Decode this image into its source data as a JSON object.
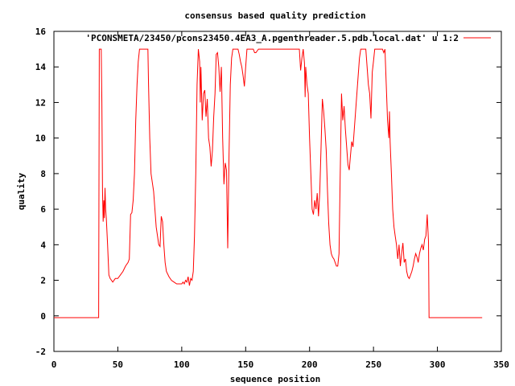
{
  "chart_data": {
    "type": "line",
    "title": "consensus based quality prediction",
    "xlabel": "sequence position",
    "ylabel": "quality",
    "xlim": [
      0,
      350
    ],
    "ylim": [
      -2,
      16
    ],
    "xticks": [
      0,
      50,
      100,
      150,
      200,
      250,
      300,
      350
    ],
    "yticks": [
      -2,
      0,
      2,
      4,
      6,
      8,
      10,
      12,
      14,
      16
    ],
    "grid": false,
    "legend_position": "top-right",
    "series": [
      {
        "name": "'PCONSMETA/23450/pcons23450.4EA3_A.pgenthreader.5.pdb.local.dat' u 1:2",
        "color": "#ff0000",
        "points": [
          [
            0,
            -0.1
          ],
          [
            35,
            -0.1
          ],
          [
            35.5,
            15
          ],
          [
            36,
            15
          ],
          [
            37,
            15
          ],
          [
            37.5,
            12
          ],
          [
            38,
            7
          ],
          [
            38.5,
            5.3
          ],
          [
            39,
            6.5
          ],
          [
            39.5,
            5.5
          ],
          [
            40,
            7.2
          ],
          [
            40.5,
            6
          ],
          [
            41,
            5.5
          ],
          [
            42,
            4
          ],
          [
            43,
            2.3
          ],
          [
            44,
            2.1
          ],
          [
            46,
            1.9
          ],
          [
            48,
            2.1
          ],
          [
            50,
            2.1
          ],
          [
            52,
            2.3
          ],
          [
            54,
            2.5
          ],
          [
            56,
            2.8
          ],
          [
            58,
            3
          ],
          [
            59,
            3.2
          ],
          [
            60,
            5.7
          ],
          [
            61,
            5.8
          ],
          [
            62,
            6.5
          ],
          [
            63,
            8
          ],
          [
            64,
            11
          ],
          [
            65,
            13
          ],
          [
            66,
            14.3
          ],
          [
            67,
            15
          ],
          [
            70,
            15
          ],
          [
            72,
            15
          ],
          [
            73.5,
            15
          ],
          [
            74,
            13
          ],
          [
            75,
            10
          ],
          [
            76,
            8
          ],
          [
            77,
            7.5
          ],
          [
            78,
            7
          ],
          [
            79,
            6
          ],
          [
            80,
            5
          ],
          [
            81,
            4.5
          ],
          [
            82,
            4
          ],
          [
            83,
            3.9
          ],
          [
            84,
            5.6
          ],
          [
            85,
            5.3
          ],
          [
            86,
            4
          ],
          [
            87,
            3
          ],
          [
            88,
            2.5
          ],
          [
            90,
            2.2
          ],
          [
            92,
            2
          ],
          [
            94,
            1.9
          ],
          [
            96,
            1.8
          ],
          [
            98,
            1.8
          ],
          [
            100,
            1.8
          ],
          [
            101,
            1.9
          ],
          [
            102,
            1.8
          ],
          [
            103,
            2
          ],
          [
            104,
            1.9
          ],
          [
            105,
            2.2
          ],
          [
            106,
            1.7
          ],
          [
            107,
            2.1
          ],
          [
            108,
            2
          ],
          [
            109,
            2.5
          ],
          [
            110,
            4.5
          ],
          [
            111,
            8
          ],
          [
            112,
            13
          ],
          [
            113,
            15
          ],
          [
            114,
            14.3
          ],
          [
            114.5,
            12
          ],
          [
            115,
            14
          ],
          [
            116,
            11
          ],
          [
            117,
            12.5
          ],
          [
            118,
            12.7
          ],
          [
            119,
            11.2
          ],
          [
            120,
            12.2
          ],
          [
            121,
            10
          ],
          [
            122,
            9.5
          ],
          [
            123,
            8.4
          ],
          [
            124,
            9.3
          ],
          [
            125,
            11.2
          ],
          [
            126,
            12.5
          ],
          [
            127,
            14.7
          ],
          [
            128,
            14.8
          ],
          [
            129,
            14
          ],
          [
            130,
            12.6
          ],
          [
            131,
            14
          ],
          [
            132,
            10
          ],
          [
            133,
            7.4
          ],
          [
            134,
            8.6
          ],
          [
            135,
            8.2
          ],
          [
            136,
            3.8
          ],
          [
            137,
            9
          ],
          [
            138,
            13
          ],
          [
            139,
            14.5
          ],
          [
            140,
            15
          ],
          [
            142,
            15
          ],
          [
            144,
            15
          ],
          [
            145,
            14.7
          ],
          [
            146,
            14.3
          ],
          [
            147,
            14
          ],
          [
            148,
            13.5
          ],
          [
            149,
            12.9
          ],
          [
            150,
            14
          ],
          [
            151,
            15
          ],
          [
            153,
            15
          ],
          [
            156,
            15
          ],
          [
            157,
            14.8
          ],
          [
            158,
            14.8
          ],
          [
            160,
            15
          ],
          [
            165,
            15
          ],
          [
            170,
            15
          ],
          [
            175,
            15
          ],
          [
            180,
            15
          ],
          [
            185,
            15
          ],
          [
            190,
            15
          ],
          [
            192,
            15
          ],
          [
            193,
            13.8
          ],
          [
            194,
            14.5
          ],
          [
            195,
            15
          ],
          [
            196,
            14.2
          ],
          [
            196.5,
            12.3
          ],
          [
            197,
            14
          ],
          [
            198,
            13
          ],
          [
            199,
            12.5
          ],
          [
            200,
            10
          ],
          [
            201,
            8
          ],
          [
            202,
            6
          ],
          [
            203,
            5.7
          ],
          [
            204,
            6.5
          ],
          [
            205,
            6
          ],
          [
            206,
            6.9
          ],
          [
            207,
            5.6
          ],
          [
            208,
            7
          ],
          [
            209,
            9.5
          ],
          [
            210,
            12.2
          ],
          [
            211,
            11.5
          ],
          [
            212,
            10.5
          ],
          [
            213,
            9.3
          ],
          [
            214,
            7
          ],
          [
            215,
            5.2
          ],
          [
            216,
            4
          ],
          [
            217,
            3.5
          ],
          [
            218,
            3.3
          ],
          [
            219,
            3.2
          ],
          [
            220,
            3
          ],
          [
            221,
            2.8
          ],
          [
            222,
            2.8
          ],
          [
            223,
            3.5
          ],
          [
            224,
            8
          ],
          [
            225,
            12.5
          ],
          [
            226,
            11
          ],
          [
            227,
            11.8
          ],
          [
            228,
            10.5
          ],
          [
            229,
            9.5
          ],
          [
            230,
            8.5
          ],
          [
            231,
            8.2
          ],
          [
            232,
            9
          ],
          [
            233,
            9.8
          ],
          [
            234,
            9.5
          ],
          [
            235,
            10.5
          ],
          [
            236,
            11.5
          ],
          [
            237,
            12.5
          ],
          [
            238,
            13.5
          ],
          [
            239,
            14.5
          ],
          [
            240,
            15
          ],
          [
            242,
            15
          ],
          [
            244,
            15
          ],
          [
            245,
            14
          ],
          [
            246,
            13
          ],
          [
            247,
            12.5
          ],
          [
            248,
            11.1
          ],
          [
            249,
            13.7
          ],
          [
            250,
            14.3
          ],
          [
            251,
            15
          ],
          [
            253,
            15
          ],
          [
            255,
            15
          ],
          [
            257,
            15
          ],
          [
            258,
            14.8
          ],
          [
            259,
            15
          ],
          [
            260,
            13
          ],
          [
            261,
            11
          ],
          [
            262,
            10
          ],
          [
            262.5,
            11.5
          ],
          [
            263,
            9.8
          ],
          [
            264,
            8
          ],
          [
            265,
            6
          ],
          [
            266,
            5
          ],
          [
            267,
            4.5
          ],
          [
            268,
            4
          ],
          [
            269,
            3.2
          ],
          [
            270,
            4
          ],
          [
            271,
            2.8
          ],
          [
            272,
            3.5
          ],
          [
            273,
            4.1
          ],
          [
            274,
            3
          ],
          [
            275,
            3.2
          ],
          [
            276,
            2.5
          ],
          [
            277,
            2.2
          ],
          [
            278,
            2.1
          ],
          [
            279,
            2.3
          ],
          [
            280,
            2.5
          ],
          [
            281,
            2.8
          ],
          [
            282,
            3.2
          ],
          [
            283,
            3.5
          ],
          [
            284,
            3.3
          ],
          [
            285,
            3.0
          ],
          [
            286,
            3.5
          ],
          [
            287,
            3.8
          ],
          [
            288,
            4
          ],
          [
            289,
            3.7
          ],
          [
            290,
            4.3
          ],
          [
            291,
            4.5
          ],
          [
            292,
            5.7
          ],
          [
            293,
            4.2
          ],
          [
            293.5,
            -0.1
          ],
          [
            300,
            -0.1
          ],
          [
            335,
            -0.1
          ]
        ]
      }
    ]
  }
}
